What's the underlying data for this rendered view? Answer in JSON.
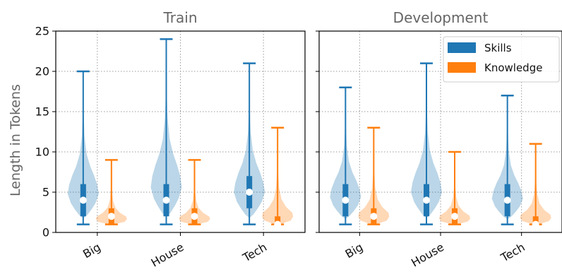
{
  "chart_data": {
    "type": "violin",
    "ylabel": "Length in Tokens",
    "ylim": [
      0,
      25
    ],
    "yticks": [
      "0",
      "5",
      "10",
      "15",
      "20",
      "25"
    ],
    "grid": true,
    "legend_placement": "top-right",
    "legend": [
      {
        "name": "Skills",
        "color": "#1f77b4"
      },
      {
        "name": "Knowledge",
        "color": "#ff7f0e"
      }
    ],
    "categories": [
      "Big",
      "House",
      "Tech"
    ],
    "panels": [
      {
        "title": "Train",
        "series": [
          {
            "name": "Skills",
            "stats": [
              {
                "min": 1,
                "q1": 2,
                "median": 4,
                "q3": 6,
                "max": 20
              },
              {
                "min": 1,
                "q1": 2,
                "median": 4,
                "q3": 6,
                "max": 24
              },
              {
                "min": 1,
                "q1": 3,
                "median": 5,
                "q3": 7,
                "max": 21
              }
            ]
          },
          {
            "name": "Knowledge",
            "stats": [
              {
                "min": 1,
                "q1": 1,
                "median": 2,
                "q3": 3,
                "max": 9
              },
              {
                "min": 1,
                "q1": 1,
                "median": 2,
                "q3": 3,
                "max": 9
              },
              {
                "min": 1,
                "q1": 1,
                "median": 1,
                "q3": 2,
                "max": 13
              }
            ]
          }
        ]
      },
      {
        "title": "Development",
        "series": [
          {
            "name": "Skills",
            "stats": [
              {
                "min": 1,
                "q1": 2,
                "median": 4,
                "q3": 6,
                "max": 18
              },
              {
                "min": 1,
                "q1": 2,
                "median": 4,
                "q3": 6,
                "max": 21
              },
              {
                "min": 1,
                "q1": 2,
                "median": 4,
                "q3": 6,
                "max": 17
              }
            ]
          },
          {
            "name": "Knowledge",
            "stats": [
              {
                "min": 1,
                "q1": 1,
                "median": 2,
                "q3": 3,
                "max": 13
              },
              {
                "min": 1,
                "q1": 1,
                "median": 2,
                "q3": 3,
                "max": 10
              },
              {
                "min": 1,
                "q1": 1,
                "median": 1,
                "q3": 2,
                "max": 11
              }
            ]
          }
        ]
      }
    ]
  }
}
